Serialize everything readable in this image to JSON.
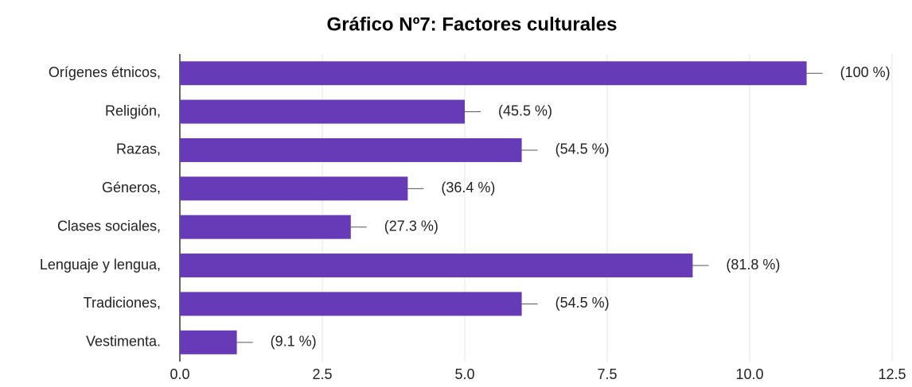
{
  "chart_data": {
    "type": "hbar",
    "title": "Gráfico Nº7: Factores culturales",
    "categories": [
      "Orígenes étnicos,",
      "Religión,",
      "Razas,",
      "Géneros,",
      "Clases sociales,",
      "Lenguaje y lengua,",
      "Tradiciones,",
      "Vestimenta."
    ],
    "values": [
      11,
      5,
      6,
      4,
      3,
      9,
      6,
      1
    ],
    "percent_labels": [
      "(100 %)",
      "(45.5 %)",
      "(54.5 %)",
      "(36.4 %)",
      "(27.3 %)",
      "(81.8 %)",
      "(54.5 %)",
      "(9.1 %)"
    ],
    "color": "#673ab7",
    "xlim": [
      0,
      12.5
    ],
    "xticks": [
      {
        "value": 0,
        "label": "0.0"
      },
      2.5,
      {
        "value": 5,
        "label": "5.0"
      },
      7.5,
      {
        "value": 10,
        "label": "10.0"
      },
      12.5
    ],
    "grid": true
  }
}
